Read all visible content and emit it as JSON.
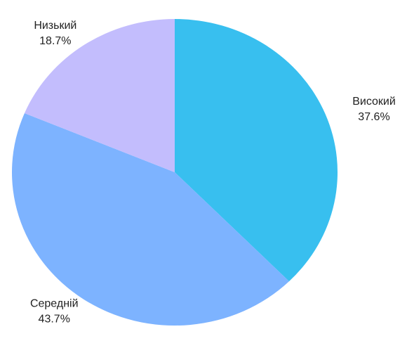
{
  "chart_data": {
    "type": "pie",
    "categories": [
      "Високий",
      "Середній",
      "Низький"
    ],
    "values": [
      37.6,
      43.7,
      18.7
    ],
    "value_labels": [
      "37.6%",
      "43.7%",
      "18.7%"
    ],
    "colors": [
      "#38bfef",
      "#7db3ff",
      "#c3bdfd"
    ]
  }
}
